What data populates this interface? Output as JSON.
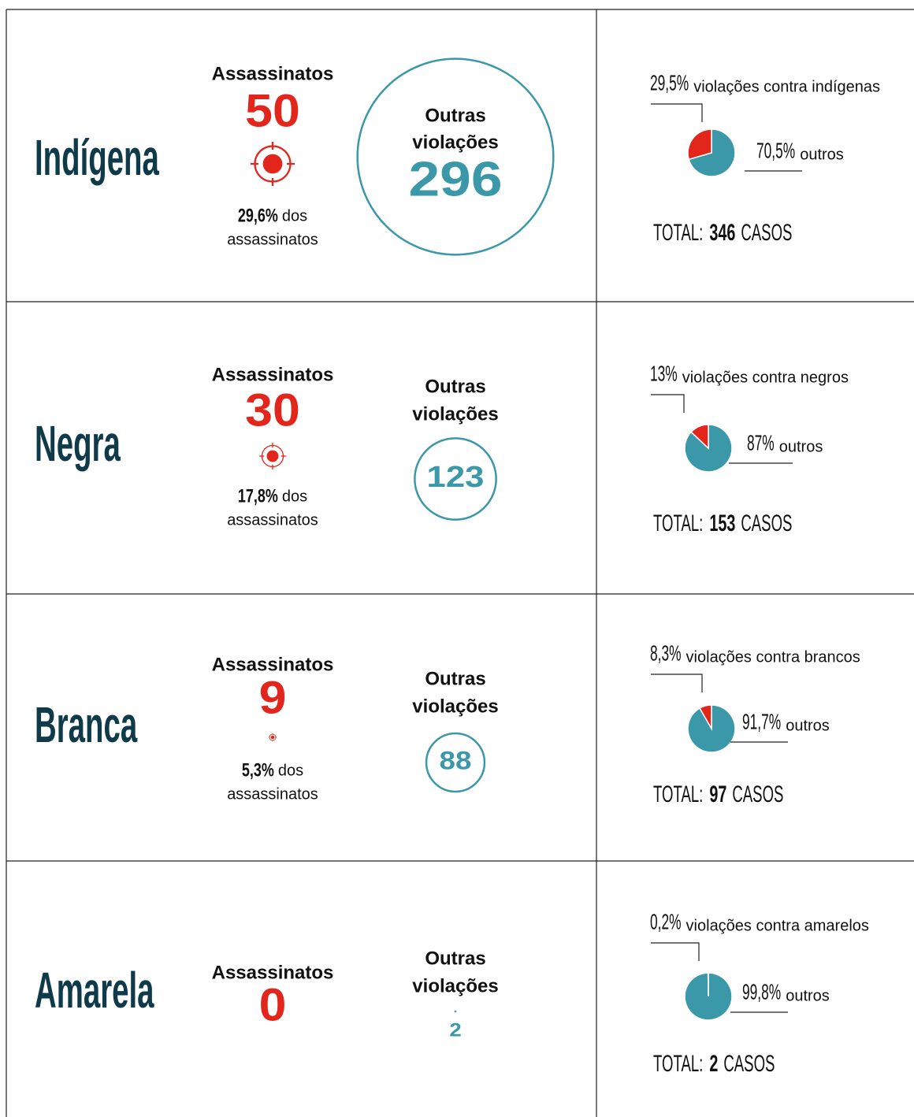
{
  "colors": {
    "share": "#e3261c",
    "rest": "#3a98a8",
    "label": "#0f3a4a",
    "murders": "#e3261c",
    "other": "#3a98a8"
  },
  "rows": [
    {
      "name": "Indígena",
      "murders_title": "Assassinatos",
      "murders": 50,
      "murders_share": {
        "value": 29.6,
        "label": "29,6%"
      },
      "murders_share_text": "dos",
      "murders_share_text2": "assassinatos",
      "other_title": "Outras",
      "other_title2": "violações",
      "other": 296,
      "pie": {
        "share": {
          "value": 29.5,
          "label": "29,5%"
        },
        "share_text": "violações contra indígenas",
        "rest": {
          "value": 70.5,
          "label": "70,5%"
        },
        "rest_text": "outros",
        "total_label": "TOTAL:",
        "total": 346,
        "total_unit": "CASOS"
      }
    },
    {
      "name": "Negra",
      "murders_title": "Assassinatos",
      "murders": 30,
      "murders_share": {
        "value": 17.8,
        "label": "17,8%"
      },
      "murders_share_text": "dos",
      "murders_share_text2": "assassinatos",
      "other_title": "Outras",
      "other_title2": "violações",
      "other": 123,
      "pie": {
        "share": {
          "value": 13,
          "label": "13%"
        },
        "share_text": "violações contra negros",
        "rest": {
          "value": 87,
          "label": "87%"
        },
        "rest_text": "outros",
        "total_label": "TOTAL:",
        "total": 153,
        "total_unit": "CASOS"
      }
    },
    {
      "name": "Branca",
      "murders_title": "Assassinatos",
      "murders": 9,
      "murders_share": {
        "value": 5.3,
        "label": "5,3%"
      },
      "murders_share_text": "dos",
      "murders_share_text2": "assassinatos",
      "other_title": "Outras",
      "other_title2": "violações",
      "other": 88,
      "pie": {
        "share": {
          "value": 8.3,
          "label": "8,3%"
        },
        "share_text": "violações contra brancos",
        "rest": {
          "value": 91.7,
          "label": "91,7%"
        },
        "rest_text": "outros",
        "total_label": "TOTAL:",
        "total": 97,
        "total_unit": "CASOS"
      }
    },
    {
      "name": "Amarela",
      "murders_title": "Assassinatos",
      "murders": 0,
      "other_title": "Outras",
      "other_title2": "violações",
      "other": 2,
      "pie": {
        "share": {
          "value": 0.2,
          "label": "0,2%"
        },
        "share_text": "violações contra amarelos",
        "rest": {
          "value": 99.8,
          "label": "99,8%"
        },
        "rest_text": "outros",
        "total_label": "TOTAL:",
        "total": 2,
        "total_unit": "CASOS"
      }
    }
  ]
}
